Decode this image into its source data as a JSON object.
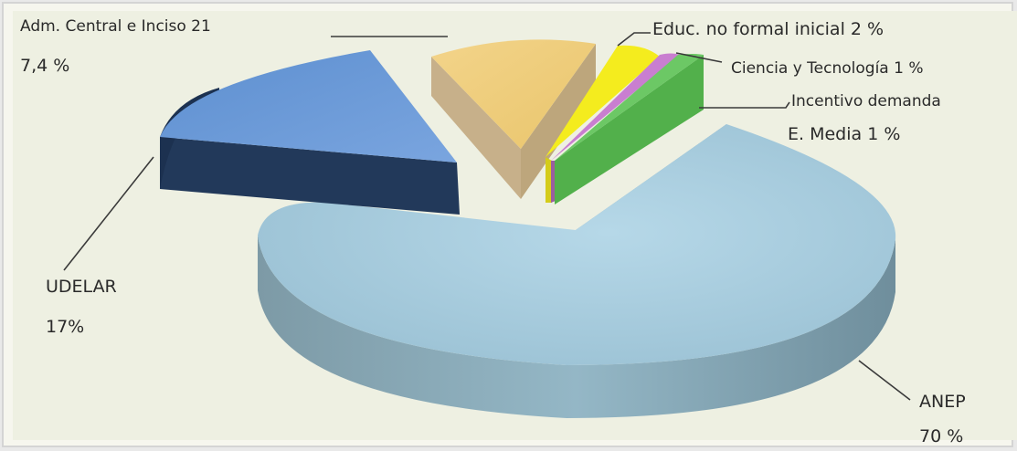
{
  "chart_data": {
    "type": "pie",
    "style": "3d-exploded",
    "title": "",
    "slices": [
      {
        "name": "ANEP",
        "value": 70,
        "display_value": "70 %",
        "color_top": "#a9cfe0",
        "color_side": "#7fa6b6"
      },
      {
        "name": "UDELAR",
        "value": 17,
        "display_value": "17%",
        "color_top": "#6a9ad8",
        "color_side": "#1f3a5e"
      },
      {
        "name": "Adm. Central  e Inciso 21",
        "value": 7.4,
        "display_value": "7,4 %",
        "color_top": "#f1cf7e",
        "color_side": "#c7b08a"
      },
      {
        "name": "Educ. no formal inicial",
        "value": 2,
        "display_value": "2 %",
        "color_top": "#f4ec1e",
        "color_side": "#d4cc1a"
      },
      {
        "name": "Ciencia y Tecnología",
        "value": 1,
        "display_value": "1 %",
        "color_top": "#c97ed0",
        "color_side": "#9a5ea0"
      },
      {
        "name": "Incentivo demanda",
        "value": 1.6,
        "display_value": "",
        "color_top": "#5cbf55",
        "color_side": "#3d9a38"
      },
      {
        "name": "E. Media",
        "value": 1,
        "display_value": "1 %",
        "color_top": "#5cbf55",
        "color_side": "#3d9a38"
      }
    ]
  },
  "labels": {
    "adm_name": "Adm. Central  e Inciso 21",
    "adm_value": "7,4 %",
    "educ": "Educ. no formal inicial 2 %",
    "ciencia": "Ciencia y Tecnología 1 %",
    "incentivo": "Incentivo demanda",
    "emedia": "E. Media  1 %",
    "udelar_name": "UDELAR",
    "udelar_value": "17%",
    "anep_name": "ANEP",
    "anep_value": "70 %"
  }
}
